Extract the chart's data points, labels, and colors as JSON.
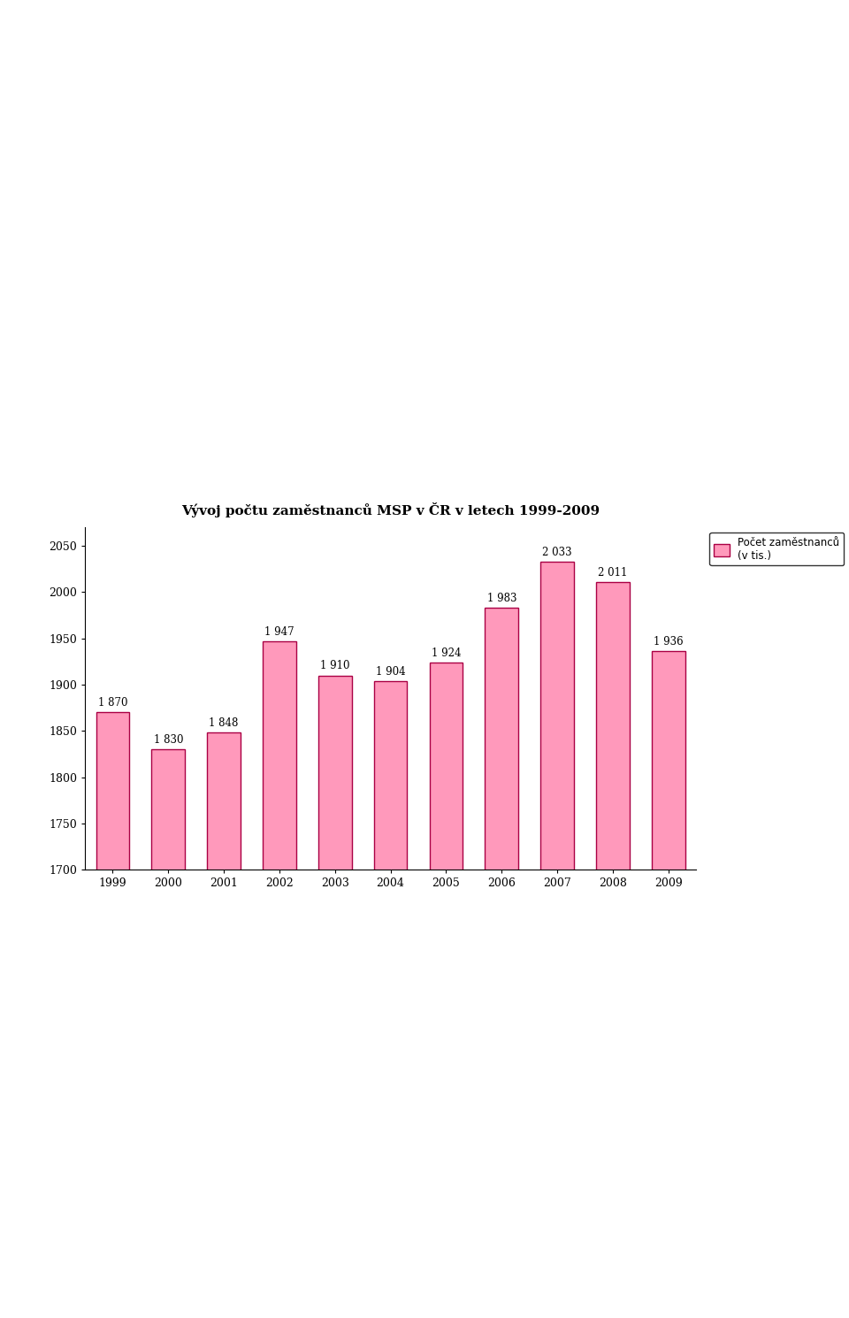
{
  "title": "Vývoj počtu zaměstnanců MSP v ČR v letech 1999-2009",
  "years": [
    1999,
    2000,
    2001,
    2002,
    2003,
    2004,
    2005,
    2006,
    2007,
    2008,
    2009
  ],
  "values": [
    1870,
    1830,
    1848,
    1947,
    1910,
    1904,
    1924,
    1983,
    2033,
    2011,
    1936
  ],
  "bar_color": "#FF99BB",
  "bar_edge_color": "#AA0044",
  "legend_label_line1": "Počet zaměstnanců",
  "legend_label_line2": "(v tis.)",
  "ylim_min": 1700,
  "ylim_max": 2050,
  "yticks": [
    1700,
    1750,
    1800,
    1850,
    1900,
    1950,
    2000,
    2050
  ],
  "background_color": "#FFFFFF",
  "chart_bg_color": "#FFFFFF",
  "title_fontsize": 11,
  "tick_fontsize": 9,
  "label_fontsize": 9
}
